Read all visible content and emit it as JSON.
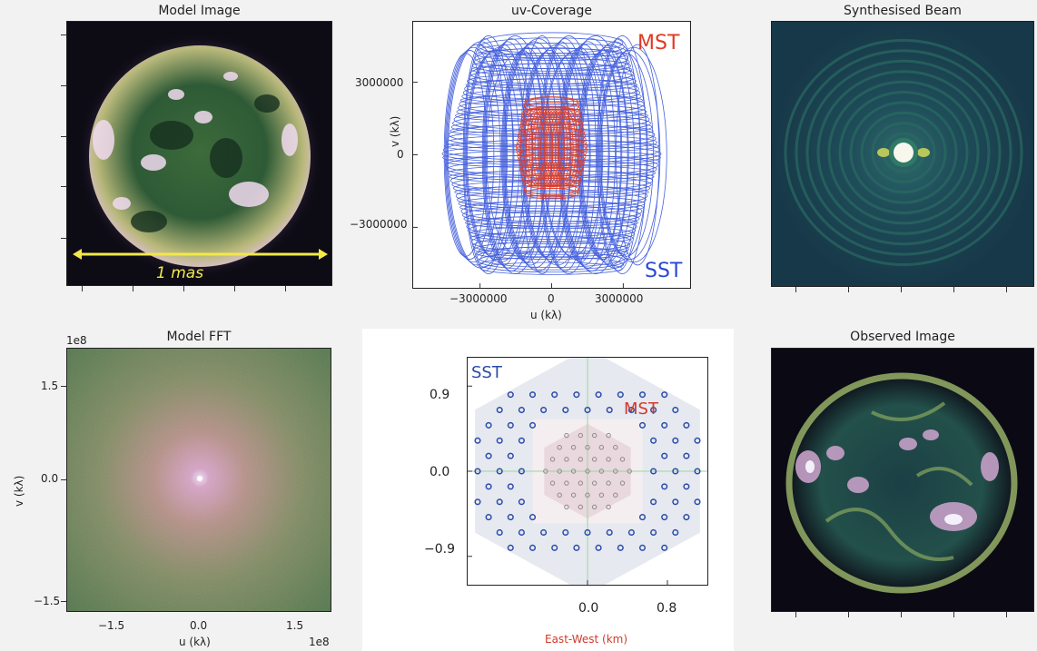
{
  "chart_data": [
    {
      "type": "heatmap",
      "title": "Model Image",
      "annotation": "1 mas",
      "colors": {
        "annotation": "#f2e84a"
      }
    },
    {
      "type": "scatter",
      "title": "uv-Coverage",
      "xlabel": "u (kλ)",
      "ylabel": "v (kλ)",
      "xticks": [
        -3000000,
        0,
        3000000
      ],
      "xtick_labels": [
        "−3000000",
        "0",
        "3000000"
      ],
      "yticks": [
        3000000,
        0,
        -3000000
      ],
      "ytick_labels": [
        "3000000",
        "0",
        "−3000000"
      ],
      "xlim": [
        -5800000,
        5800000
      ],
      "ylim": [
        -5500000,
        5500000
      ],
      "series": [
        {
          "name": "MST",
          "color": "#e03a22"
        },
        {
          "name": "SST",
          "color": "#2747d6"
        }
      ]
    },
    {
      "type": "heatmap",
      "title": "Synthesised Beam"
    },
    {
      "type": "heatmap",
      "title": "Model FFT",
      "xlabel": "u (kλ)",
      "ylabel": "v (kλ)",
      "xtick_labels": [
        "−1.5",
        "0.0",
        "1.5"
      ],
      "ytick_labels": [
        "1.5",
        "0.0",
        "−1.5"
      ],
      "x_offset": "1e8",
      "y_offset": "1e8"
    },
    {
      "type": "scatter",
      "title": "",
      "xlabel": "East-West (km)",
      "xticks": [
        0.0,
        0.8
      ],
      "xtick_labels": [
        "0.0",
        "0.8"
      ],
      "yticks": [
        0.9,
        0.0,
        -0.9
      ],
      "ytick_labels": [
        "0.9",
        "0.0",
        "−0.9"
      ],
      "xlim": [
        -1.2,
        1.2
      ],
      "ylim": [
        -1.2,
        1.2
      ],
      "series": [
        {
          "name": "SST",
          "color": "#2a4aa8"
        },
        {
          "name": "MST",
          "color": "#d33a2a"
        }
      ]
    },
    {
      "type": "heatmap",
      "title": "Observed Image"
    }
  ]
}
